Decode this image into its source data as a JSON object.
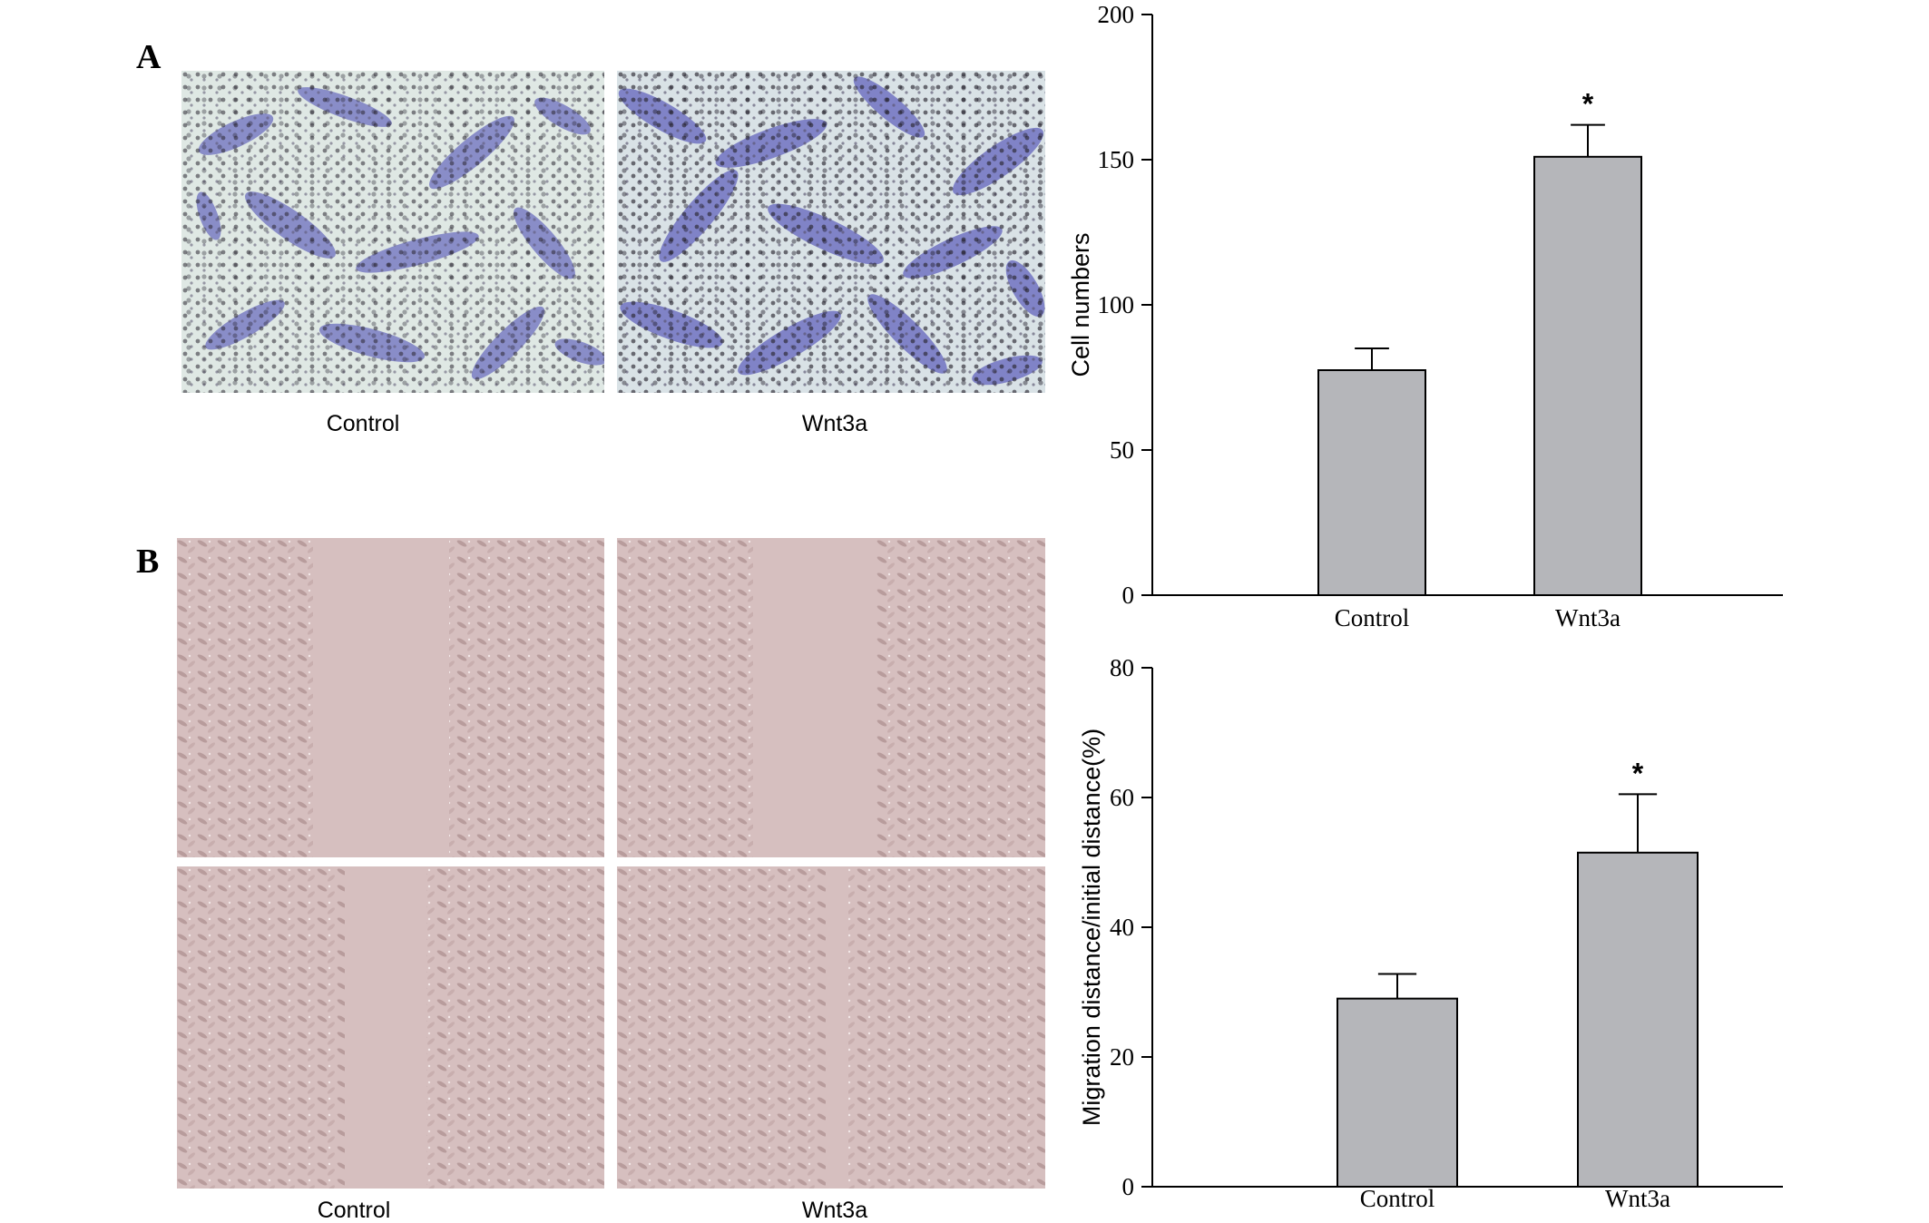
{
  "panels": {
    "a": {
      "letter": "A",
      "images": [
        {
          "label": "Control"
        },
        {
          "label": "Wnt3a"
        }
      ]
    },
    "b": {
      "letter": "B",
      "images": [
        {
          "label": "Control"
        },
        {
          "label": "Wnt3a"
        }
      ]
    }
  },
  "colors": {
    "bar_fill": "#b5b6ba",
    "bar_stroke": "#000000",
    "transwell_bg": "#dfe8e4",
    "transwell_stain": "#6d6fbf",
    "scratch_bg": "#d8c2c2",
    "scratch_cells": "#c9b0b0"
  },
  "chart_data": [
    {
      "type": "bar",
      "categories": [
        "Control",
        "Wnt3a"
      ],
      "values": [
        77.5,
        151
      ],
      "errors": [
        7.5,
        11
      ],
      "significance": [
        "",
        "*"
      ],
      "title": "",
      "xlabel": "",
      "ylabel": "Cell numbers",
      "ylim": [
        0,
        200
      ],
      "yticks": [
        0,
        50,
        100,
        150,
        200
      ],
      "grid": false,
      "legend": "none"
    },
    {
      "type": "bar",
      "categories": [
        "Control",
        "Wnt3a"
      ],
      "values": [
        29,
        51.5
      ],
      "errors": [
        3.8,
        9
      ],
      "significance": [
        "",
        "*"
      ],
      "title": "",
      "xlabel": "",
      "ylabel": "Migration distance/initial distance(%)",
      "ylim": [
        0,
        80
      ],
      "yticks": [
        0,
        20,
        40,
        60,
        80
      ],
      "grid": false,
      "legend": "none"
    }
  ]
}
